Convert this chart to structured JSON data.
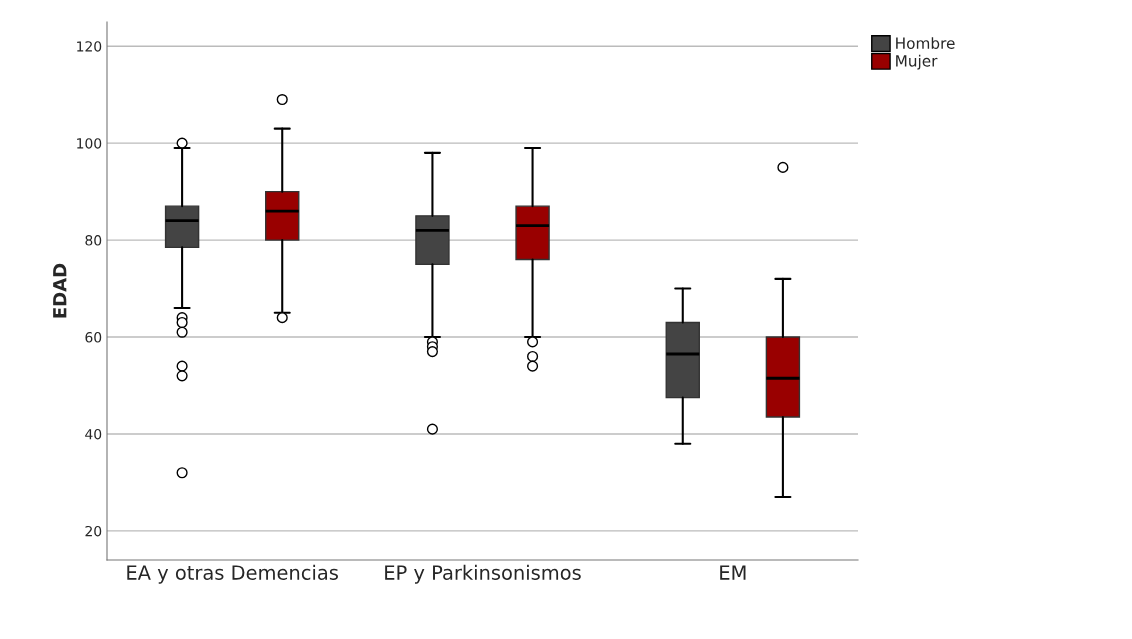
{
  "chart_data": {
    "type": "box",
    "ylabel": "EDAD",
    "categories": [
      "EA y otras Demencias",
      "EP y Parkinsonismos",
      "EM"
    ],
    "series": [
      {
        "name": "Hombre",
        "color": "#444444",
        "boxes": [
          {
            "low": 66,
            "q1": 78.5,
            "median": 84,
            "q3": 87,
            "high": 99,
            "outliers": [
              100,
              64,
              63,
              61,
              54,
              52,
              32
            ]
          },
          {
            "low": 60,
            "q1": 75,
            "median": 82,
            "q3": 85,
            "high": 98,
            "outliers": [
              59,
              58,
              57,
              41
            ]
          },
          {
            "low": 38,
            "q1": 47.5,
            "median": 56.5,
            "q3": 63,
            "high": 70
          }
        ]
      },
      {
        "name": "Mujer",
        "color": "#990000",
        "boxes": [
          {
            "low": 65,
            "q1": 80,
            "median": 86,
            "q3": 90,
            "high": 103,
            "outliers": [
              109,
              64
            ]
          },
          {
            "low": 60,
            "q1": 76,
            "median": 83,
            "q3": 87,
            "high": 99,
            "outliers": [
              59,
              56,
              54
            ]
          },
          {
            "low": 27,
            "q1": 43.5,
            "median": 51.5,
            "q3": 60,
            "high": 72,
            "outliers": [
              95
            ]
          }
        ]
      }
    ],
    "ylim": [
      14,
      125
    ],
    "yticks": [
      20,
      40,
      60,
      80,
      100,
      120
    ],
    "grid": "y",
    "legend": "top right"
  }
}
